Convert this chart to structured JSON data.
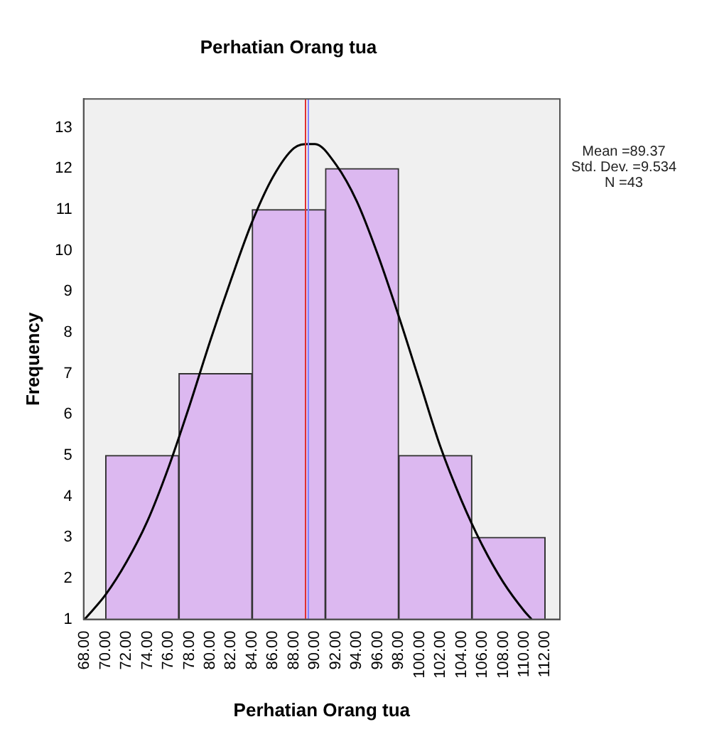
{
  "chart_data": {
    "type": "histogram",
    "title": "Perhatian Orang tua",
    "xlabel": "Perhatian Orang tua",
    "ylabel": "Frequency",
    "bins": [
      70,
      77,
      84,
      91,
      98,
      105,
      112
    ],
    "values": [
      5,
      7,
      11,
      12,
      5,
      3
    ],
    "color": "#dcb8f0",
    "series": [
      {
        "type": "line",
        "color": "#000000",
        "x": [
          68,
          70,
          72,
          74,
          76,
          78,
          80,
          82,
          84,
          86,
          88,
          89.37,
          90,
          92,
          94,
          96,
          98,
          100,
          102,
          104,
          106,
          108,
          110,
          110.7
        ],
        "values": [
          1.0,
          1.6,
          2.4,
          3.4,
          4.7,
          6.2,
          7.8,
          9.3,
          10.7,
          11.8,
          12.5,
          12.6,
          12.6,
          12.1,
          11.2,
          9.9,
          8.4,
          6.8,
          5.2,
          3.9,
          2.8,
          1.9,
          1.2,
          1.0
        ]
      }
    ],
    "xlim": [
      67.9,
      113.4
    ],
    "ylim": [
      1,
      13.7
    ],
    "xticks": [
      {
        "value": 68,
        "label": "68.00"
      },
      {
        "value": 70,
        "label": "70.00"
      },
      {
        "value": 72,
        "label": "72.00"
      },
      {
        "value": 74,
        "label": "74.00"
      },
      {
        "value": 76,
        "label": "76.00"
      },
      {
        "value": 78,
        "label": "78.00"
      },
      {
        "value": 80,
        "label": "80.00"
      },
      {
        "value": 82,
        "label": "82.00"
      },
      {
        "value": 84,
        "label": "84.00"
      },
      {
        "value": 86,
        "label": "86.00"
      },
      {
        "value": 88,
        "label": "88.00"
      },
      {
        "value": 90,
        "label": "90.00"
      },
      {
        "value": 92,
        "label": "92.00"
      },
      {
        "value": 94,
        "label": "94.00"
      },
      {
        "value": 96,
        "label": "96.00"
      },
      {
        "value": 98,
        "label": "98.00"
      },
      {
        "value": 100,
        "label": "100.00"
      },
      {
        "value": 102,
        "label": "102.00"
      },
      {
        "value": 104,
        "label": "104.00"
      },
      {
        "value": 106,
        "label": "106.00"
      },
      {
        "value": 108,
        "label": "108.00"
      },
      {
        "value": 110,
        "label": "110.00"
      },
      {
        "value": 112,
        "label": "112.00"
      }
    ],
    "yticks": [
      1,
      2,
      3,
      4,
      5,
      6,
      7,
      8,
      9,
      10,
      11,
      12,
      13
    ],
    "ref_lines": [
      {
        "axis": "x",
        "value": 89.1,
        "color": "#e03030"
      },
      {
        "axis": "x",
        "value": 89.37,
        "color": "#8080ff"
      }
    ],
    "annotations": [
      "Mean =89.37",
      "Std. Dev. =9.534",
      "N =43"
    ],
    "grid": false,
    "legend": false
  }
}
